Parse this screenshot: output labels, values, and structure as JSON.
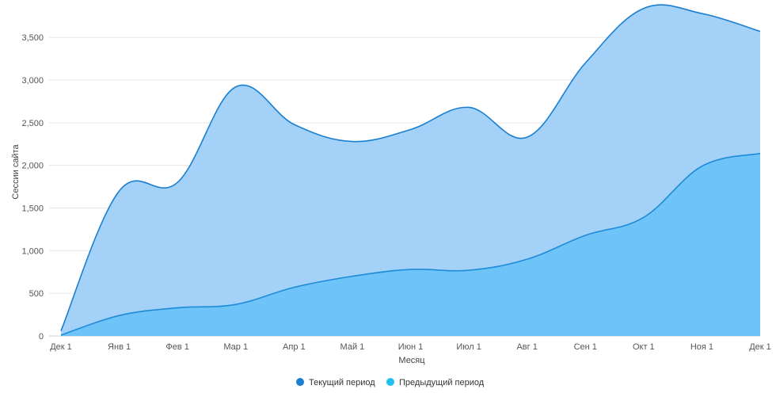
{
  "chart_data": {
    "type": "area",
    "title": "",
    "xlabel": "Месяц",
    "ylabel": "Сессии сайта",
    "ylim": [
      0,
      3750
    ],
    "yticks": [
      0,
      500,
      1000,
      1500,
      2000,
      2500,
      3000,
      3500
    ],
    "ytick_labels": [
      "0",
      "500",
      "1,000",
      "1,500",
      "2,000",
      "2,500",
      "3,000",
      "3,500"
    ],
    "categories": [
      "Дек 1",
      "Янв 1",
      "Фев 1",
      "Мар 1",
      "Апр 1",
      "Май 1",
      "Июн 1",
      "Июл 1",
      "Авг 1",
      "Сен 1",
      "Окт 1",
      "Ноя 1",
      "Дек 1"
    ],
    "grid": true,
    "legend_position": "bottom",
    "series": [
      {
        "name": "Текущий период",
        "color": "#1a7fd0",
        "fill": "#a3d1f7",
        "values": [
          60,
          1700,
          1800,
          2920,
          2480,
          2280,
          2420,
          2680,
          2330,
          3200,
          3840,
          3780,
          3570
        ]
      },
      {
        "name": "Предыдущий период",
        "color": "#1e8bd8",
        "fill": "#6cc2f8",
        "values": [
          10,
          240,
          330,
          370,
          570,
          700,
          780,
          770,
          900,
          1180,
          1390,
          1990,
          2140
        ]
      }
    ]
  }
}
